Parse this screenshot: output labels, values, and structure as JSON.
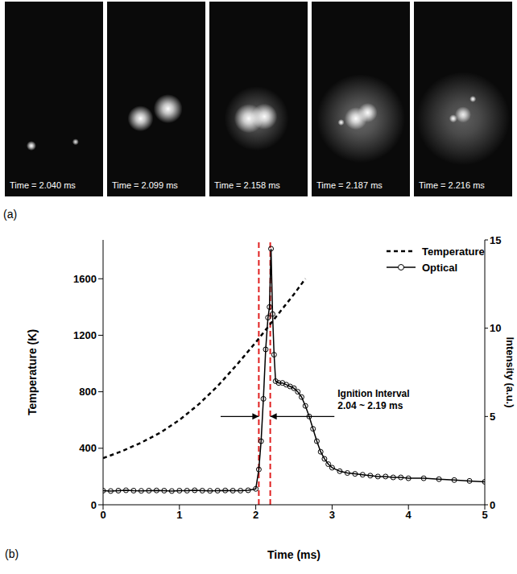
{
  "images": {
    "label": "(a)",
    "frames": [
      {
        "caption": "Time = 2.040 ms"
      },
      {
        "caption": "Time = 2.099 ms"
      },
      {
        "caption": "Time = 2.158 ms"
      },
      {
        "caption": "Time = 2.187 ms"
      },
      {
        "caption": "Time = 2.216 ms"
      }
    ]
  },
  "chart_data": {
    "type": "line",
    "label": "(b)",
    "x_label": "Time (ms)",
    "y_label": "Temperature (K)",
    "y2_label": "Intensity (a.u.)",
    "xlim": [
      0,
      5
    ],
    "xticks": [
      0,
      1,
      2,
      3,
      4,
      5
    ],
    "ylim": [
      0,
      1875
    ],
    "yticks": [
      0,
      400,
      800,
      1200,
      1600
    ],
    "y2lim": [
      0,
      15
    ],
    "y2ticks": [
      0,
      5,
      10,
      15
    ],
    "legend": "upper right",
    "grid": false,
    "series": [
      {
        "name": "Temperature",
        "color": "#000000",
        "line_style": "dashed",
        "marker": "none",
        "x": [
          0,
          0.25,
          0.5,
          0.75,
          1,
          1.25,
          1.5,
          1.75,
          2,
          2.25,
          2.5,
          2.65
        ],
        "values": [
          330,
          380,
          440,
          510,
          600,
          710,
          840,
          990,
          1150,
          1320,
          1490,
          1600
        ]
      },
      {
        "name": "Optical",
        "axis": "y2",
        "color": "#000000",
        "line_style": "solid",
        "marker": "circle",
        "x": [
          0,
          0.1,
          0.2,
          0.3,
          0.4,
          0.5,
          0.6,
          0.7,
          0.8,
          0.9,
          1.0,
          1.1,
          1.2,
          1.3,
          1.4,
          1.5,
          1.6,
          1.7,
          1.8,
          1.9,
          2.0,
          2.04,
          2.07,
          2.1,
          2.13,
          2.16,
          2.18,
          2.2,
          2.22,
          2.24,
          2.26,
          2.3,
          2.35,
          2.4,
          2.45,
          2.5,
          2.55,
          2.6,
          2.65,
          2.7,
          2.75,
          2.8,
          2.85,
          2.9,
          2.95,
          3.0,
          3.1,
          3.2,
          3.3,
          3.4,
          3.5,
          3.6,
          3.7,
          3.8,
          3.9,
          4.0,
          4.2,
          4.4,
          4.6,
          4.8,
          5.0
        ],
        "values": [
          0.8,
          0.78,
          0.8,
          0.82,
          0.8,
          0.79,
          0.8,
          0.81,
          0.8,
          0.78,
          0.8,
          0.8,
          0.82,
          0.8,
          0.79,
          0.8,
          0.81,
          0.8,
          0.8,
          0.82,
          0.9,
          2.0,
          3.6,
          6.0,
          8.8,
          10.6,
          11.2,
          14.5,
          10.8,
          8.5,
          7.0,
          6.9,
          6.9,
          6.8,
          6.7,
          6.6,
          6.4,
          6.1,
          5.6,
          5.0,
          4.3,
          3.6,
          3.0,
          2.6,
          2.3,
          2.1,
          1.9,
          1.8,
          1.75,
          1.7,
          1.65,
          1.6,
          1.6,
          1.55,
          1.55,
          1.5,
          1.5,
          1.45,
          1.4,
          1.35,
          1.3
        ]
      }
    ],
    "reference_lines": {
      "x": [
        2.04,
        2.19
      ],
      "color": "#e02020",
      "line_style": "dashed"
    },
    "annotations": [
      {
        "text": "Ignition Interval"
      },
      {
        "text": "2.04 ~ 2.19 ms"
      }
    ]
  }
}
